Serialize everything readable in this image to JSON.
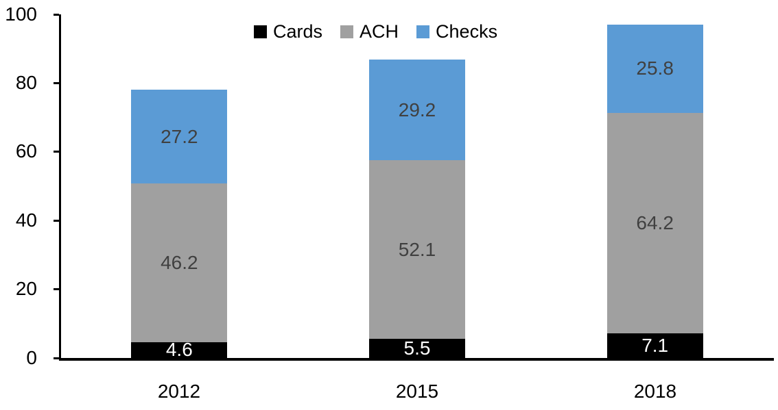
{
  "chart_data": {
    "type": "bar",
    "stacked": true,
    "title": "",
    "xlabel": "",
    "ylabel": "",
    "categories": [
      "2012",
      "2015",
      "2018"
    ],
    "series": [
      {
        "name": "Cards",
        "color": "#000000",
        "label_color": "#FFFFFF",
        "values": [
          4.6,
          5.5,
          7.1
        ]
      },
      {
        "name": "ACH",
        "color": "#A0A0A0",
        "label_color": "#404040",
        "values": [
          46.2,
          52.1,
          64.2
        ]
      },
      {
        "name": "Checks",
        "color": "#5B9BD5",
        "label_color": "#404040",
        "values": [
          27.2,
          29.2,
          25.8
        ]
      }
    ],
    "ylim": [
      0,
      100
    ],
    "yticks": [
      0,
      20,
      40,
      60,
      80,
      100
    ],
    "grid": false,
    "legend_position": "top-center",
    "axis_color": "#000000",
    "background_color": "#FFFFFF"
  }
}
